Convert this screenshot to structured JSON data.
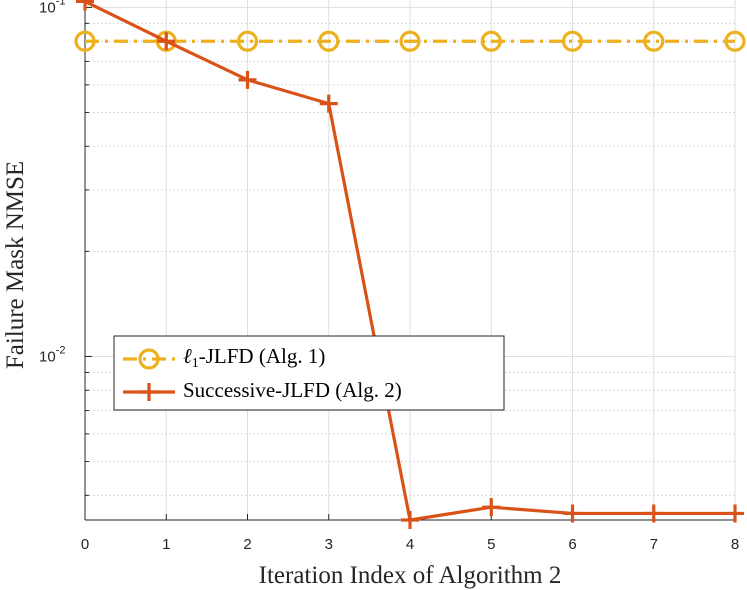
{
  "chart_data": {
    "type": "line",
    "xlabel": "Iteration Index of Algorithm 2",
    "ylabel": "Failure Mask NMSE",
    "x": [
      0,
      1,
      2,
      3,
      4,
      5,
      6,
      7,
      8
    ],
    "xlim": [
      0,
      8
    ],
    "ylim": [
      0.0034,
      0.105
    ],
    "yscale": "log",
    "grid": true,
    "x_ticks": [
      "0",
      "1",
      "2",
      "3",
      "4",
      "5",
      "6",
      "7",
      "8"
    ],
    "y_ticks": [
      {
        "base": "10",
        "exp": "-1",
        "value": 0.1
      },
      {
        "base": "10",
        "exp": "-2",
        "value": 0.01
      }
    ],
    "legend_position": "center-left",
    "series": [
      {
        "name": "ℓ1-JLFD (Alg. 1)",
        "legend_main": "ℓ",
        "legend_sub": "1",
        "legend_rest": "-JLFD (Alg. 1)",
        "color": "#EDB120",
        "marker": "circle",
        "line_style": "dash-dot",
        "values": [
          0.08,
          0.08,
          0.08,
          0.08,
          0.08,
          0.08,
          0.08,
          0.08,
          0.08
        ]
      },
      {
        "name": "Successive-JLFD (Alg. 2)",
        "legend_main": "Successive-JLFD (Alg. 2)",
        "color": "#D95319",
        "marker": "plus",
        "line_style": "solid",
        "values": [
          0.104,
          0.08,
          0.062,
          0.053,
          0.0034,
          0.0037,
          0.00355,
          0.00355,
          0.00355
        ]
      }
    ]
  }
}
